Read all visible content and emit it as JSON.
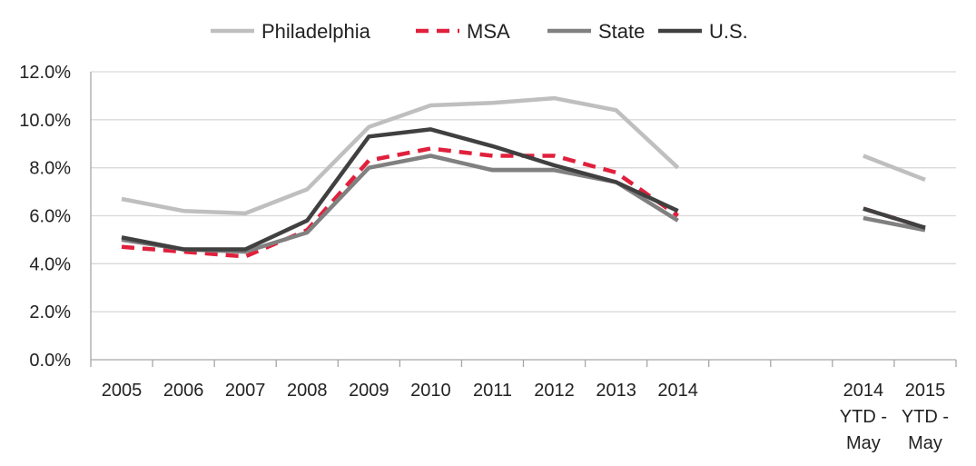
{
  "chart_data": {
    "type": "line",
    "title": "",
    "xlabel": "",
    "ylabel": "",
    "ylim": [
      0,
      12
    ],
    "yticks": [
      "0.0%",
      "2.0%",
      "4.0%",
      "6.0%",
      "8.0%",
      "10.0%",
      "12.0%"
    ],
    "grid": true,
    "legend_position": "top-center",
    "categories": [
      "2005",
      "2006",
      "2007",
      "2008",
      "2009",
      "2010",
      "2011",
      "2012",
      "2013",
      "2014",
      "",
      "",
      "2014 YTD - May",
      "2015 YTD - May"
    ],
    "category_lines": [
      [
        "2005"
      ],
      [
        "2006"
      ],
      [
        "2007"
      ],
      [
        "2008"
      ],
      [
        "2009"
      ],
      [
        "2010"
      ],
      [
        "2011"
      ],
      [
        "2012"
      ],
      [
        "2013"
      ],
      [
        "2014"
      ],
      [],
      [],
      [
        "2014",
        "YTD -",
        "May"
      ],
      [
        "2015",
        "YTD -",
        "May"
      ]
    ],
    "series": [
      {
        "name": "Philadelphia",
        "color": "#bfbfbf",
        "dash": "solid",
        "values": [
          6.7,
          6.2,
          6.1,
          7.1,
          9.7,
          10.6,
          10.7,
          10.9,
          10.4,
          8.0,
          null,
          null,
          8.5,
          7.5
        ]
      },
      {
        "name": "MSA",
        "color": "#e0203c",
        "dash": "dashed",
        "values": [
          4.7,
          4.5,
          4.3,
          5.4,
          8.3,
          8.8,
          8.5,
          8.5,
          7.8,
          6.0,
          null,
          null,
          6.3,
          5.5
        ]
      },
      {
        "name": "State",
        "color": "#808080",
        "dash": "solid",
        "values": [
          5.0,
          4.6,
          4.5,
          5.3,
          8.0,
          8.5,
          7.9,
          7.9,
          7.4,
          5.8,
          null,
          null,
          5.9,
          5.4
        ]
      },
      {
        "name": "U.S.",
        "color": "#404040",
        "dash": "solid",
        "values": [
          5.1,
          4.6,
          4.6,
          5.8,
          9.3,
          9.6,
          8.9,
          8.1,
          7.4,
          6.2,
          null,
          null,
          6.3,
          5.5
        ]
      }
    ]
  }
}
